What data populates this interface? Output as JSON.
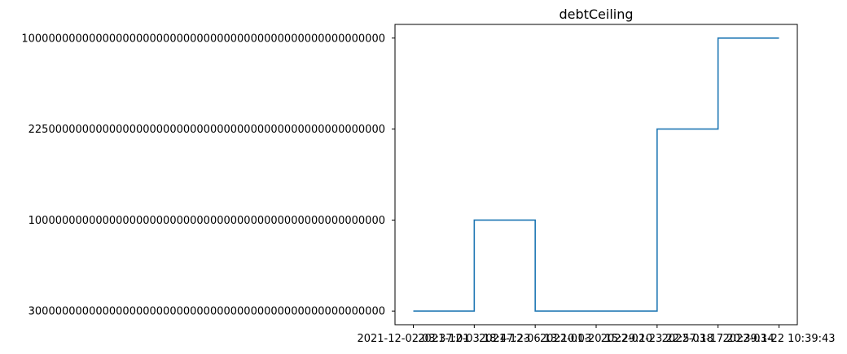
{
  "chart_data": {
    "type": "line",
    "drawstyle": "steps-post",
    "title": "debtCeiling",
    "xlabel": "",
    "ylabel": "",
    "grid": false,
    "legend": "none",
    "x": [
      "2021-12-02 03:37:01",
      "2021-12-03 18:47:23",
      "2021-12-06 13:10:03",
      "2022-01-20 15:29:10",
      "2022-02-23 22:57:18",
      "2022-03-17 20:39:14",
      "2022-03-22 10:39:43"
    ],
    "x_tick_labels": [
      "2021-12-02 03:37:01",
      "2021-12-03 18:47:23",
      "2021-12-06 13:10:03",
      "2022-01-20 15:29:10",
      "2022-02-23 22:57:18",
      "2022-03-17 20:39:14",
      "2022-03-22 10:39:43"
    ],
    "y_tick_labels": [
      "30000000000000000000000000000000000000000000000000000",
      "10000000000000000000000000000000000000000000000000000",
      "22500000000000000000000000000000000000000000000000000",
      "100000000000000000000000000000000000000000000000000000"
    ],
    "series": [
      {
        "values": [
          "30000000000000000000000000000000000000000000000000000",
          "10000000000000000000000000000000000000000000000000000",
          "30000000000000000000000000000000000000000000000000000",
          "30000000000000000000000000000000000000000000000000000",
          "22500000000000000000000000000000000000000000000000000",
          "100000000000000000000000000000000000000000000000000000",
          "100000000000000000000000000000000000000000000000000000"
        ],
        "color": "#1f77b4"
      }
    ]
  }
}
